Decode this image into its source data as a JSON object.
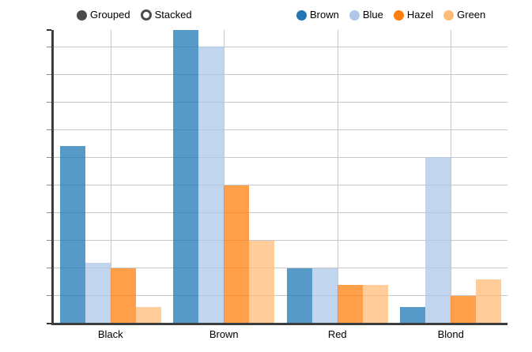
{
  "controls": {
    "options": [
      {
        "id": "grouped",
        "label": "Grouped",
        "selected": true
      },
      {
        "id": "stacked",
        "label": "Stacked",
        "selected": false
      }
    ]
  },
  "legend": {
    "position": "top-right",
    "items": [
      {
        "label": "Brown",
        "color": "#1f77b4"
      },
      {
        "label": "Blue",
        "color": "#aec7e8"
      },
      {
        "label": "Hazel",
        "color": "#ff7f0e"
      },
      {
        "label": "Green",
        "color": "#ffbb78"
      }
    ]
  },
  "chart_data": {
    "type": "bar",
    "mode": "grouped",
    "title": "",
    "xlabel": "",
    "ylabel": "",
    "categories": [
      "Black",
      "Brown",
      "Red",
      "Blond"
    ],
    "series": [
      {
        "name": "Brown",
        "color": "#1f77b4",
        "fill": "rgba(31,119,180,0.75)",
        "values": [
          32,
          53,
          10,
          3
        ]
      },
      {
        "name": "Blue",
        "color": "#aec7e8",
        "fill": "rgba(174,199,232,0.75)",
        "values": [
          11,
          50,
          10,
          30
        ]
      },
      {
        "name": "Hazel",
        "color": "#ff7f0e",
        "fill": "rgba(255,127,14,0.75)",
        "values": [
          10,
          25,
          7,
          5
        ]
      },
      {
        "name": "Green",
        "color": "#ffbb78",
        "fill": "rgba(255,187,120,0.75)",
        "values": [
          3,
          15,
          7,
          8
        ]
      }
    ],
    "ylim": [
      0,
      53
    ],
    "y_tick_values": [
      53,
      50,
      45,
      40,
      35,
      30,
      25,
      20,
      15,
      10,
      5,
      0
    ],
    "y_tick_labels": [
      "53.0",
      "50.0",
      "45.0",
      "40.0",
      "35.0",
      "30.0",
      "25.0",
      "20.0",
      "15.0",
      "10.0",
      "5.0",
      "0.0"
    ],
    "y_bold_ticks": [
      53,
      0
    ],
    "grid": true,
    "legend_position": "top"
  },
  "colors": {
    "grid": "#c7c7c7",
    "axis": "#3d3d3d",
    "text": "#000000",
    "control": "#4b4b4b",
    "background": "#ffffff"
  }
}
